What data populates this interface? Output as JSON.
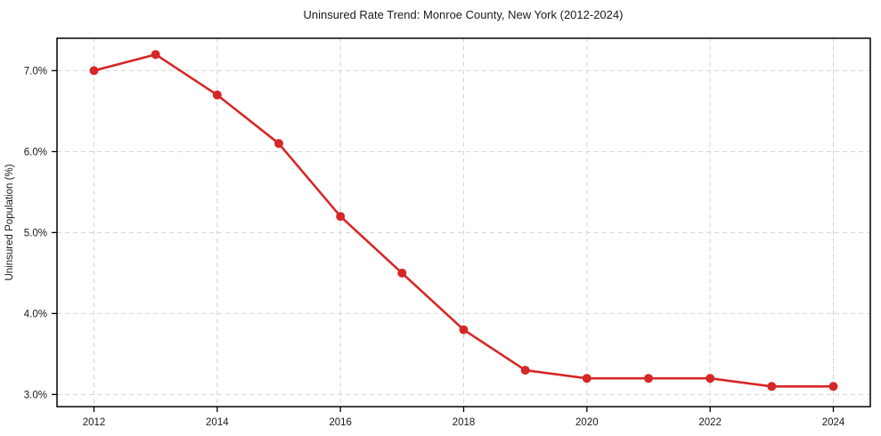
{
  "chart_data": {
    "type": "line",
    "title": "Uninsured Rate Trend: Monroe County, New York (2012-2024)",
    "xlabel": "",
    "ylabel": "Uninsured Population (%)",
    "series": [
      {
        "name": "Uninsured Rate",
        "x": [
          2012,
          2013,
          2014,
          2015,
          2016,
          2017,
          2018,
          2019,
          2020,
          2021,
          2022,
          2023,
          2024
        ],
        "values": [
          7.0,
          7.2,
          6.7,
          6.1,
          5.2,
          4.5,
          3.8,
          3.3,
          3.2,
          3.2,
          3.2,
          3.1,
          3.1
        ]
      }
    ],
    "x_ticks": [
      2012,
      2014,
      2016,
      2018,
      2020,
      2022,
      2024
    ],
    "x_tick_labels": [
      "2012",
      "2014",
      "2016",
      "2018",
      "2020",
      "2022",
      "2024"
    ],
    "y_ticks": [
      3.0,
      4.0,
      5.0,
      6.0,
      7.0
    ],
    "y_tick_labels": [
      "3.0%",
      "4.0%",
      "5.0%",
      "6.0%",
      "7.0%"
    ],
    "xlim": [
      2011.4,
      2024.6
    ],
    "ylim": [
      2.85,
      7.4
    ],
    "grid": "dashed, both axes",
    "legend": "none",
    "marker": "circle",
    "colors": {
      "line": "#d62728",
      "marker": "#d62728",
      "grid": "#d3d3d3",
      "spine": "#000000",
      "text": "#1a1a1a",
      "background": "#ffffff"
    }
  }
}
